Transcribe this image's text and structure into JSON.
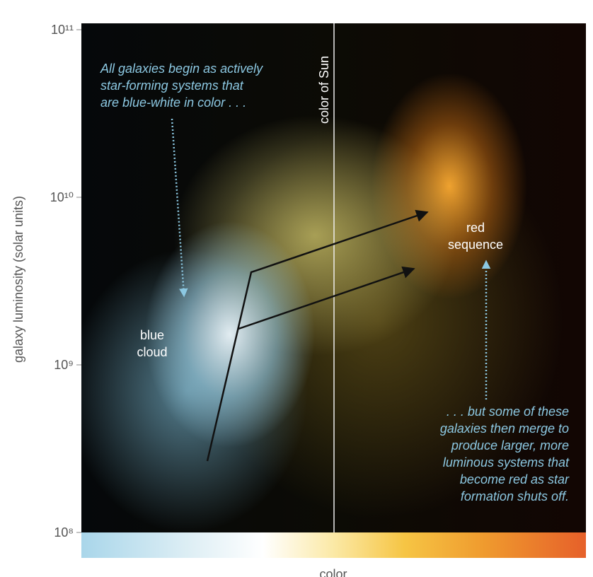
{
  "chart_data": {
    "type": "density",
    "ylabel": "galaxy luminosity (solar units)",
    "xlabel": "color",
    "yscale": "log",
    "ylim": [
      100000000,
      100000000000
    ],
    "yticks": [
      {
        "value": 100000000,
        "label": "10⁸"
      },
      {
        "value": 1000000000,
        "label": "10⁹"
      },
      {
        "value": 10000000000,
        "label": "10¹⁰"
      },
      {
        "value": 100000000000,
        "label": "10¹¹"
      }
    ],
    "reference_line": "color of Sun",
    "regions": [
      {
        "lines": [
          "blue",
          "cloud"
        ]
      },
      {
        "lines": [
          "red",
          "sequence"
        ]
      }
    ],
    "annotations": [
      {
        "lines": [
          "All galaxies begin as actively",
          "star-forming systems that",
          "are blue-white in color . . ."
        ]
      },
      {
        "lines": [
          ". . . but some of these",
          "galaxies then merge to",
          "produce larger, more",
          "luminous systems that",
          "become red as star",
          "formation shuts off."
        ]
      }
    ]
  }
}
